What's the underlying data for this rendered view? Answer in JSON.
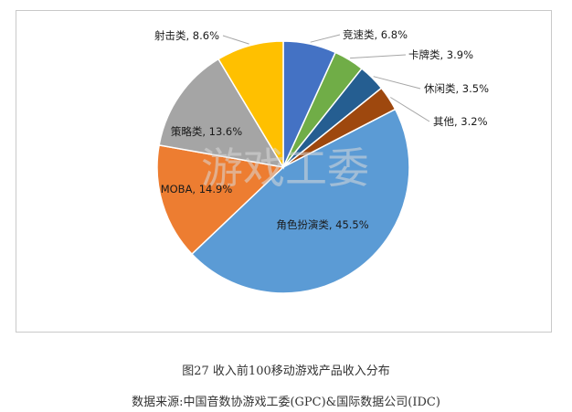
{
  "chart_data": {
    "type": "pie",
    "slices": [
      {
        "label": "竞速类",
        "value": 6.8,
        "display": "竞速类, 6.8%",
        "color": "#4472c4"
      },
      {
        "label": "卡牌类",
        "value": 3.9,
        "display": "卡牌类, 3.9%",
        "color": "#70ad47"
      },
      {
        "label": "休闲类",
        "value": 3.5,
        "display": "休闲类, 3.5%",
        "color": "#255e91"
      },
      {
        "label": "其他",
        "value": 3.2,
        "display": "其他, 3.2%",
        "color": "#9e480e"
      },
      {
        "label": "角色扮演类",
        "value": 45.5,
        "display": "角色扮演类, 45.5%",
        "color": "#5b9bd5"
      },
      {
        "label": "MOBA",
        "value": 14.9,
        "display": "MOBA, 14.9%",
        "color": "#ed7d31"
      },
      {
        "label": "策略类",
        "value": 13.6,
        "display": "策略类, 13.6%",
        "color": "#a5a5a5"
      },
      {
        "label": "射击类",
        "value": 8.6,
        "display": "射击类, 8.6%",
        "color": "#ffc000"
      }
    ],
    "watermark": "游戏工委"
  },
  "figure": {
    "caption": "图27  收入前100移动游戏产品收入分布",
    "source": "数据来源:中国音数协游戏工委(GPC)&国际数据公司(IDC)"
  }
}
